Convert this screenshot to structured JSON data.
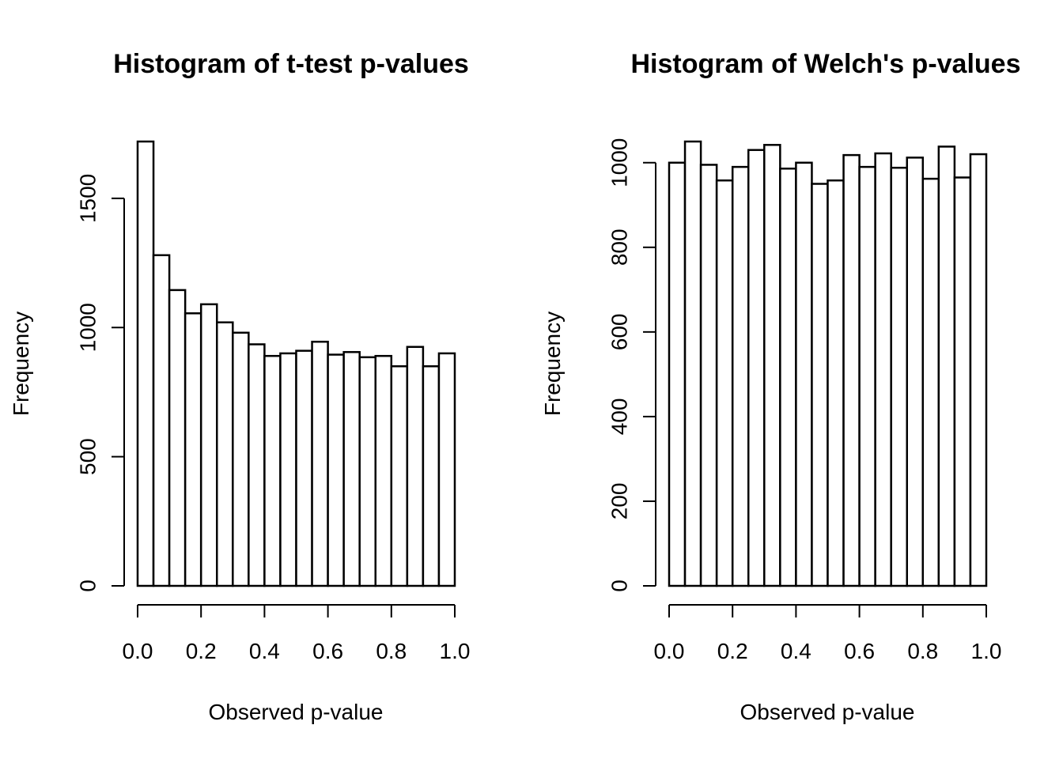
{
  "chart_data": [
    {
      "type": "bar",
      "title": "Histogram of t-test p-values",
      "xlabel": "Observed p-value",
      "ylabel": "Frequency",
      "bin_edges": [
        0.0,
        0.05,
        0.1,
        0.15,
        0.2,
        0.25,
        0.3,
        0.35,
        0.4,
        0.45,
        0.5,
        0.55,
        0.6,
        0.65,
        0.7,
        0.75,
        0.8,
        0.85,
        0.9,
        0.95,
        1.0
      ],
      "values": [
        1720,
        1280,
        1145,
        1055,
        1090,
        1020,
        980,
        935,
        890,
        900,
        910,
        945,
        895,
        905,
        885,
        890,
        850,
        925,
        850,
        900
      ],
      "xlim": [
        0,
        1
      ],
      "ylim": [
        0,
        1720
      ],
      "xticks": [
        "0.0",
        "0.2",
        "0.4",
        "0.6",
        "0.8",
        "1.0"
      ],
      "yticks": [
        "0",
        "500",
        "1000",
        "1500"
      ],
      "grid": false
    },
    {
      "type": "bar",
      "title": "Histogram of Welch's p-values",
      "xlabel": "Observed p-value",
      "ylabel": "Frequency",
      "bin_edges": [
        0.0,
        0.05,
        0.1,
        0.15,
        0.2,
        0.25,
        0.3,
        0.35,
        0.4,
        0.45,
        0.5,
        0.55,
        0.6,
        0.65,
        0.7,
        0.75,
        0.8,
        0.85,
        0.9,
        0.95,
        1.0
      ],
      "values": [
        1000,
        1050,
        995,
        958,
        990,
        1030,
        1042,
        986,
        1000,
        950,
        958,
        1018,
        990,
        1022,
        988,
        1012,
        962,
        1038,
        965,
        1020
      ],
      "xlim": [
        0,
        1
      ],
      "ylim": [
        0,
        1050
      ],
      "xticks": [
        "0.0",
        "0.2",
        "0.4",
        "0.6",
        "0.8",
        "1.0"
      ],
      "yticks": [
        "0",
        "200",
        "400",
        "600",
        "800",
        "1000"
      ],
      "grid": false
    }
  ]
}
